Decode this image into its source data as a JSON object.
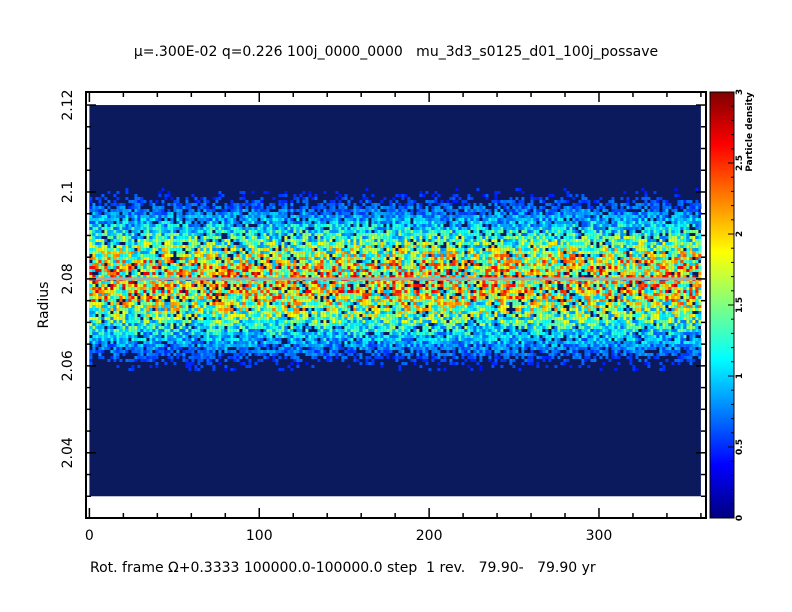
{
  "header": {
    "mu_symbol": "μ",
    "title_rest": "=.300E-02 q=0.226 100j_0000_0000   mu_3d3_s0125_d01_100j_possave"
  },
  "footer": {
    "text": "Rot. frame Ω+0.3333 100000.0-100000.0 step  1 rev.   79.90-   79.90 yr"
  },
  "chart_data": {
    "type": "heatmap",
    "title": "μ=.300E-02 q=0.226 100j_0000_0000   mu_3d3_s0125_d01_100j_possave",
    "xlabel": "",
    "ylabel": "Radius",
    "xlim": [
      -2,
      363
    ],
    "ylim": [
      2.025,
      2.123
    ],
    "x_ticks": [
      0,
      100,
      200,
      300
    ],
    "y_ticks": [
      2.04,
      2.06,
      2.08,
      2.1,
      2.12
    ],
    "y_tick_labels": [
      "2.04",
      "2.06",
      "2.08",
      "2.1",
      "2.12"
    ],
    "grid": false,
    "data_region": {
      "x": [
        0,
        360
      ],
      "y": [
        2.03,
        2.12
      ]
    },
    "particle_band": {
      "radius_min": 2.06,
      "radius_max": 2.1,
      "peak_radius": 2.08
    },
    "reference_line": {
      "radius": 2.08,
      "color": "#a9a9a9"
    },
    "colorbar": {
      "label": "Particle density",
      "range": [
        0,
        3
      ],
      "ticks": [
        0,
        0.5,
        1,
        1.5,
        2,
        2.5,
        3
      ],
      "tick_labels": [
        "0",
        "0.5",
        "1",
        "1.5",
        "2",
        "2.5",
        "3"
      ],
      "colormap": [
        "#000080",
        "#0000ff",
        "#0080ff",
        "#00ffff",
        "#80ff80",
        "#ffff00",
        "#ff8000",
        "#ff0000",
        "#800000"
      ]
    },
    "background_color": "#0a1a5c"
  }
}
